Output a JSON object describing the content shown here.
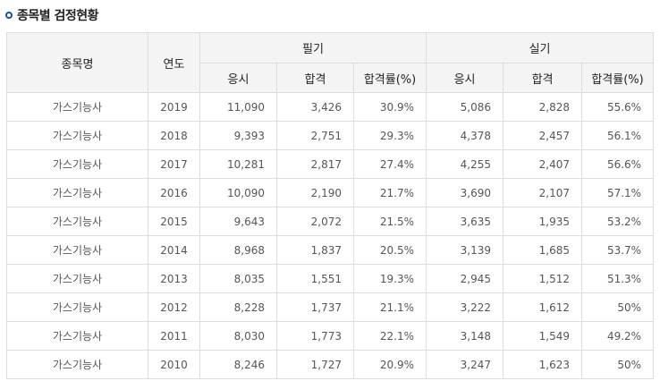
{
  "page": {
    "title": "종목별 검정현황"
  },
  "table": {
    "header": {
      "name": "종목명",
      "year": "연도",
      "written": "필기",
      "practical": "실기",
      "sub": [
        "응시",
        "합격",
        "합격률(%)"
      ]
    },
    "rows": [
      {
        "name": "가스기능사",
        "year": "2019",
        "w_apply": "11,090",
        "w_pass": "3,426",
        "w_rate": "30.9%",
        "p_apply": "5,086",
        "p_pass": "2,828",
        "p_rate": "55.6%"
      },
      {
        "name": "가스기능사",
        "year": "2018",
        "w_apply": "9,393",
        "w_pass": "2,751",
        "w_rate": "29.3%",
        "p_apply": "4,378",
        "p_pass": "2,457",
        "p_rate": "56.1%"
      },
      {
        "name": "가스기능사",
        "year": "2017",
        "w_apply": "10,281",
        "w_pass": "2,817",
        "w_rate": "27.4%",
        "p_apply": "4,255",
        "p_pass": "2,407",
        "p_rate": "56.6%"
      },
      {
        "name": "가스기능사",
        "year": "2016",
        "w_apply": "10,090",
        "w_pass": "2,190",
        "w_rate": "21.7%",
        "p_apply": "3,690",
        "p_pass": "2,107",
        "p_rate": "57.1%"
      },
      {
        "name": "가스기능사",
        "year": "2015",
        "w_apply": "9,643",
        "w_pass": "2,072",
        "w_rate": "21.5%",
        "p_apply": "3,635",
        "p_pass": "1,935",
        "p_rate": "53.2%"
      },
      {
        "name": "가스기능사",
        "year": "2014",
        "w_apply": "8,968",
        "w_pass": "1,837",
        "w_rate": "20.5%",
        "p_apply": "3,139",
        "p_pass": "1,685",
        "p_rate": "53.7%"
      },
      {
        "name": "가스기능사",
        "year": "2013",
        "w_apply": "8,035",
        "w_pass": "1,551",
        "w_rate": "19.3%",
        "p_apply": "2,945",
        "p_pass": "1,512",
        "p_rate": "51.3%"
      },
      {
        "name": "가스기능사",
        "year": "2012",
        "w_apply": "8,228",
        "w_pass": "1,737",
        "w_rate": "21.1%",
        "p_apply": "3,222",
        "p_pass": "1,612",
        "p_rate": "50%"
      },
      {
        "name": "가스기능사",
        "year": "2011",
        "w_apply": "8,030",
        "w_pass": "1,773",
        "w_rate": "22.1%",
        "p_apply": "3,148",
        "p_pass": "1,549",
        "p_rate": "49.2%"
      },
      {
        "name": "가스기능사",
        "year": "2010",
        "w_apply": "8,246",
        "w_pass": "1,727",
        "w_rate": "20.9%",
        "p_apply": "3,247",
        "p_pass": "1,623",
        "p_rate": "50%"
      }
    ]
  }
}
